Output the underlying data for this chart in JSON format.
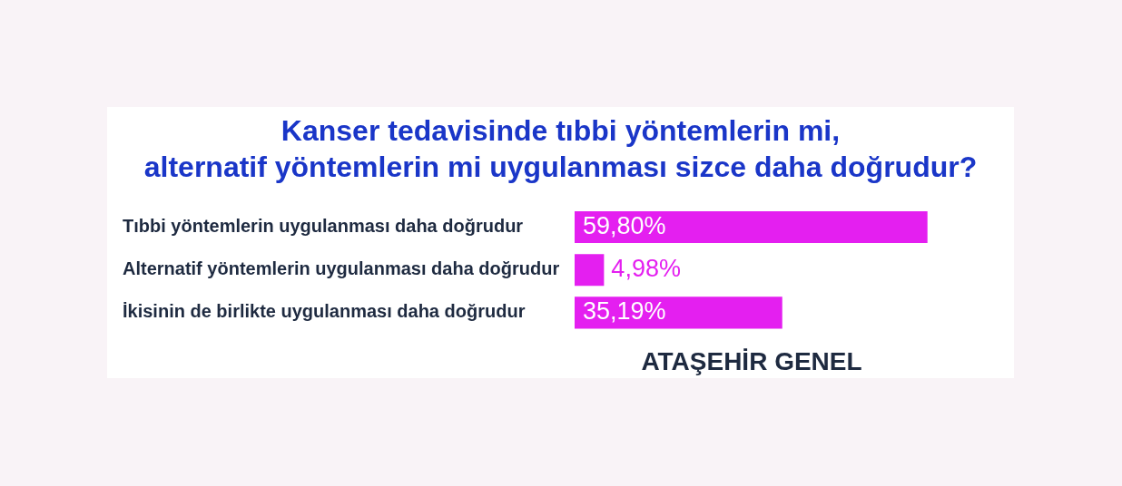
{
  "chart_data": {
    "type": "bar",
    "orientation": "horizontal",
    "title": "Kanser tedavisinde tıbbi yöntemlerin mi,\nalternatif yöntemlerin mi uygulanması sizce daha doğrudur?",
    "xlabel": "ATAŞEHİR GENEL",
    "categories": [
      "Tıbbi yöntemlerin uygulanması daha doğrudur",
      "Alternatif yöntemlerin uygulanması daha doğrudur",
      "İkisinin de birlikte uygulanması daha doğrudur"
    ],
    "values": [
      59.8,
      4.98,
      35.19
    ],
    "value_labels": [
      "59,80%",
      "4,98%",
      "35,19%"
    ],
    "color": "#e41ff0",
    "grid": false,
    "legend": false,
    "tick_labels": "y"
  }
}
